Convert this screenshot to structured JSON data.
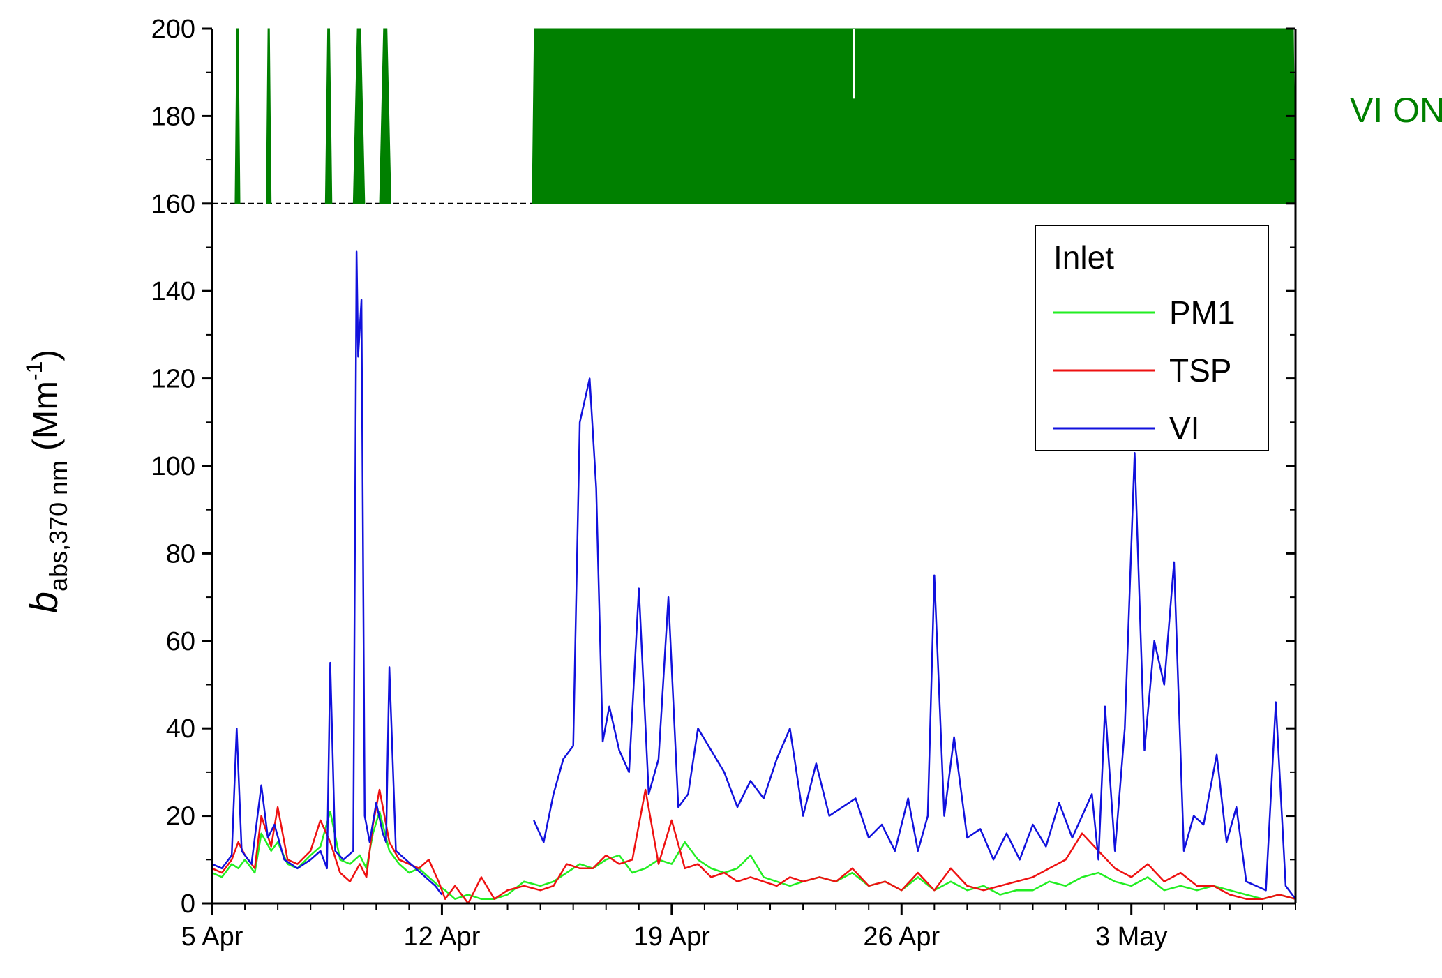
{
  "chart_data": {
    "type": "line",
    "ylabel": {
      "main": "b",
      "sub": "abs,370 nm",
      "unit_pre": " (Mm",
      "unit_sup": "-1",
      "unit_post": ")"
    },
    "xlabel": "",
    "x_unit": "days since 5 Apr",
    "xlim": [
      "5 Apr",
      "8 May"
    ],
    "ylim": [
      0,
      200
    ],
    "ticks": {
      "x_major": [
        {
          "date": "5 Apr",
          "label": "5 Apr"
        },
        {
          "date": "12 Apr",
          "label": "12 Apr"
        },
        {
          "date": "19 Apr",
          "label": "19 Apr"
        },
        {
          "date": "26 Apr",
          "label": "26 Apr"
        },
        {
          "date": "3 May",
          "label": "3 May"
        }
      ],
      "y_major": [
        {
          "value": 0,
          "label": "0"
        },
        {
          "value": 20,
          "label": "20"
        },
        {
          "value": 40,
          "label": "40"
        },
        {
          "value": 60,
          "label": "60"
        },
        {
          "value": 80,
          "label": "80"
        },
        {
          "value": 100,
          "label": "100"
        },
        {
          "value": 120,
          "label": "120"
        },
        {
          "value": 140,
          "label": "140"
        },
        {
          "value": 160,
          "label": "160"
        },
        {
          "value": 180,
          "label": "180"
        },
        {
          "value": 200,
          "label": "200"
        }
      ]
    },
    "vi_status": {
      "label": "VI ON",
      "color": "#008000",
      "baseline": 160,
      "top": 200,
      "on_periods": [
        [
          "5.7 Apr",
          "5.85 Apr"
        ],
        [
          "6.65 Apr",
          "6.8 Apr"
        ],
        [
          "8.45 Apr",
          "8.65 Apr"
        ],
        [
          "9.3 Apr",
          "9.65 Apr"
        ],
        [
          "10.1 Apr",
          "10.45 Apr"
        ],
        [
          "14.75 Apr",
          "8 May"
        ]
      ],
      "gap": "24.55 Apr"
    },
    "legend": {
      "title": "Inlet",
      "position": "top-right"
    },
    "series": [
      {
        "name": "PM1",
        "color": "#22ee22",
        "x": [
          "5.0 Apr",
          "5.3 Apr",
          "5.6 Apr",
          "5.8 Apr",
          "6.0 Apr",
          "6.3 Apr",
          "6.5 Apr",
          "6.8 Apr",
          "7.0 Apr",
          "7.3 Apr",
          "7.6 Apr",
          "8.0 Apr",
          "8.3 Apr",
          "8.6 Apr",
          "8.9 Apr",
          "9.2 Apr",
          "9.5 Apr",
          "9.7 Apr",
          "9.9 Apr",
          "10.1 Apr",
          "10.4 Apr",
          "10.7 Apr",
          "11.0 Apr",
          "11.3 Apr",
          "11.6 Apr",
          "11.9 Apr",
          "12.1 Apr",
          "12.4 Apr",
          "12.8 Apr",
          "13.2 Apr",
          "13.6 Apr",
          "14.0 Apr",
          "14.5 Apr",
          "15.0 Apr",
          "15.4 Apr",
          "15.8 Apr",
          "16.2 Apr",
          "16.6 Apr",
          "17.0 Apr",
          "17.4 Apr",
          "17.8 Apr",
          "18.2 Apr",
          "18.6 Apr",
          "19.0 Apr",
          "19.4 Apr",
          "19.8 Apr",
          "20.2 Apr",
          "20.6 Apr",
          "21.0 Apr",
          "21.4 Apr",
          "21.8 Apr",
          "22.2 Apr",
          "22.6 Apr",
          "23.0 Apr",
          "23.5 Apr",
          "24.0 Apr",
          "24.5 Apr",
          "25.0 Apr",
          "25.5 Apr",
          "26.0 Apr",
          "26.5 Apr",
          "27.0 Apr",
          "27.5 Apr",
          "28.0 Apr",
          "28.5 Apr",
          "29.0 Apr",
          "29.5 Apr",
          "30.0 Apr",
          "30.5 Apr",
          "1.0 May",
          "1.5 May",
          "2.0 May",
          "2.5 May",
          "3.0 May",
          "3.5 May",
          "4.0 May",
          "4.5 May",
          "5.0 May",
          "5.5 May",
          "6.0 May",
          "6.5 May",
          "7.0 May",
          "7.5 May",
          "8.0 May"
        ],
        "values": [
          7,
          6,
          9,
          8,
          10,
          7,
          16,
          12,
          14,
          9,
          8,
          11,
          13,
          21,
          10,
          9,
          11,
          8,
          16,
          21,
          12,
          9,
          7,
          8,
          6,
          4,
          3,
          1,
          2,
          1,
          1,
          2,
          5,
          4,
          5,
          7,
          9,
          8,
          10,
          11,
          7,
          8,
          10,
          9,
          14,
          10,
          8,
          7,
          8,
          11,
          6,
          5,
          4,
          5,
          6,
          5,
          7,
          4,
          5,
          3,
          6,
          3,
          5,
          3,
          4,
          2,
          3,
          3,
          5,
          4,
          6,
          7,
          5,
          4,
          6,
          3,
          4,
          3,
          4,
          3,
          2,
          1,
          2,
          1
        ]
      },
      {
        "name": "TSP",
        "color": "#ee1111",
        "x": [
          "5.0 Apr",
          "5.3 Apr",
          "5.6 Apr",
          "5.8 Apr",
          "6.0 Apr",
          "6.3 Apr",
          "6.5 Apr",
          "6.8 Apr",
          "7.0 Apr",
          "7.3 Apr",
          "7.6 Apr",
          "8.0 Apr",
          "8.3 Apr",
          "8.6 Apr",
          "8.9 Apr",
          "9.2 Apr",
          "9.5 Apr",
          "9.7 Apr",
          "9.9 Apr",
          "10.1 Apr",
          "10.4 Apr",
          "10.7 Apr",
          "11.0 Apr",
          "11.3 Apr",
          "11.6 Apr",
          "11.9 Apr",
          "12.1 Apr",
          "12.4 Apr",
          "12.8 Apr",
          "13.2 Apr",
          "13.6 Apr",
          "14.0 Apr",
          "14.5 Apr",
          "15.0 Apr",
          "15.4 Apr",
          "15.8 Apr",
          "16.2 Apr",
          "16.6 Apr",
          "17.0 Apr",
          "17.4 Apr",
          "17.8 Apr",
          "18.2 Apr",
          "18.6 Apr",
          "19.0 Apr",
          "19.4 Apr",
          "19.8 Apr",
          "20.2 Apr",
          "20.6 Apr",
          "21.0 Apr",
          "21.4 Apr",
          "21.8 Apr",
          "22.2 Apr",
          "22.6 Apr",
          "23.0 Apr",
          "23.5 Apr",
          "24.0 Apr",
          "24.5 Apr",
          "25.0 Apr",
          "25.5 Apr",
          "26.0 Apr",
          "26.5 Apr",
          "27.0 Apr",
          "27.5 Apr",
          "28.0 Apr",
          "28.5 Apr",
          "29.0 Apr",
          "29.5 Apr",
          "30.0 Apr",
          "30.5 Apr",
          "1.0 May",
          "1.5 May",
          "2.0 May",
          "2.5 May",
          "3.0 May",
          "3.5 May",
          "4.0 May",
          "4.5 May",
          "5.0 May",
          "5.5 May",
          "6.0 May",
          "6.5 May",
          "7.0 May",
          "7.5 May",
          "8.0 May"
        ],
        "values": [
          8,
          7,
          10,
          14,
          11,
          8,
          20,
          13,
          22,
          10,
          9,
          12,
          19,
          14,
          7,
          5,
          9,
          6,
          18,
          26,
          14,
          10,
          9,
          8,
          10,
          5,
          1,
          4,
          0,
          6,
          1,
          3,
          4,
          3,
          4,
          9,
          8,
          8,
          11,
          9,
          10,
          26,
          9,
          19,
          8,
          9,
          6,
          7,
          5,
          6,
          5,
          4,
          6,
          5,
          6,
          5,
          8,
          4,
          5,
          3,
          7,
          3,
          8,
          4,
          3,
          4,
          5,
          6,
          8,
          10,
          16,
          12,
          8,
          6,
          9,
          5,
          7,
          4,
          4,
          2,
          1,
          1,
          2,
          1
        ]
      },
      {
        "name": "VI",
        "color": "#1111dd",
        "x": [
          "5.0 Apr",
          "5.3 Apr",
          "5.6 Apr",
          "5.75 Apr",
          "5.9 Apr",
          "6.2 Apr",
          "6.5 Apr",
          "6.7 Apr",
          "6.9 Apr",
          "7.2 Apr",
          "7.6 Apr",
          "8.0 Apr",
          "8.3 Apr",
          "8.5 Apr",
          "8.6 Apr",
          "8.75 Apr",
          "9.0 Apr",
          "9.3 Apr",
          "9.4 Apr",
          "9.45 Apr",
          "9.55 Apr",
          "9.65 Apr",
          "9.8 Apr",
          "10.0 Apr",
          "10.2 Apr",
          "10.3 Apr",
          "10.4 Apr",
          "10.6 Apr",
          "10.9 Apr",
          "11.2 Apr",
          "11.5 Apr",
          "11.8 Apr",
          "12.0 Apr",
          "12.2 Apr",
          "14.8 Apr",
          "15.1 Apr",
          "15.4 Apr",
          "15.7 Apr",
          "16.0 Apr",
          "16.2 Apr",
          "16.5 Apr",
          "16.7 Apr",
          "16.9 Apr",
          "17.1 Apr",
          "17.4 Apr",
          "17.7 Apr",
          "18.0 Apr",
          "18.3 Apr",
          "18.6 Apr",
          "18.9 Apr",
          "19.2 Apr",
          "19.5 Apr",
          "19.8 Apr",
          "20.2 Apr",
          "20.6 Apr",
          "21.0 Apr",
          "21.4 Apr",
          "21.8 Apr",
          "22.2 Apr",
          "22.6 Apr",
          "23.0 Apr",
          "23.4 Apr",
          "23.8 Apr",
          "24.2 Apr",
          "24.6 Apr",
          "25.0 Apr",
          "25.4 Apr",
          "25.8 Apr",
          "26.2 Apr",
          "26.5 Apr",
          "26.8 Apr",
          "27.0 Apr",
          "27.3 Apr",
          "27.6 Apr",
          "28.0 Apr",
          "28.4 Apr",
          "28.8 Apr",
          "29.2 Apr",
          "29.6 Apr",
          "30.0 Apr",
          "30.4 Apr",
          "30.8 Apr",
          "1.2 May",
          "1.5 May",
          "1.8 May",
          "2.0 May",
          "2.2 May",
          "2.5 May",
          "2.8 May",
          "3.1 May",
          "3.4 May",
          "3.7 May",
          "4.0 May",
          "4.3 May",
          "4.6 May",
          "4.9 May",
          "5.2 May",
          "5.6 May",
          "5.9 May",
          "6.2 May",
          "6.5 May",
          "6.8 May",
          "7.1 May",
          "7.4 May",
          "7.7 May",
          "8.0 May"
        ],
        "values": [
          9,
          8,
          11,
          40,
          12,
          9,
          27,
          15,
          18,
          10,
          8,
          10,
          12,
          8,
          55,
          12,
          10,
          12,
          149,
          125,
          138,
          20,
          14,
          23,
          16,
          14,
          54,
          12,
          10,
          8,
          6,
          4,
          2,
          null,
          19,
          14,
          25,
          33,
          36,
          110,
          120,
          95,
          37,
          45,
          35,
          30,
          72,
          25,
          33,
          70,
          22,
          25,
          40,
          35,
          30,
          22,
          28,
          24,
          33,
          40,
          20,
          32,
          20,
          22,
          24,
          15,
          18,
          12,
          24,
          12,
          20,
          75,
          20,
          38,
          15,
          17,
          10,
          16,
          10,
          18,
          13,
          23,
          15,
          20,
          25,
          10,
          45,
          12,
          40,
          103,
          35,
          60,
          50,
          78,
          12,
          20,
          18,
          34,
          14,
          22,
          5,
          4,
          3,
          46,
          4,
          1
        ]
      }
    ]
  }
}
